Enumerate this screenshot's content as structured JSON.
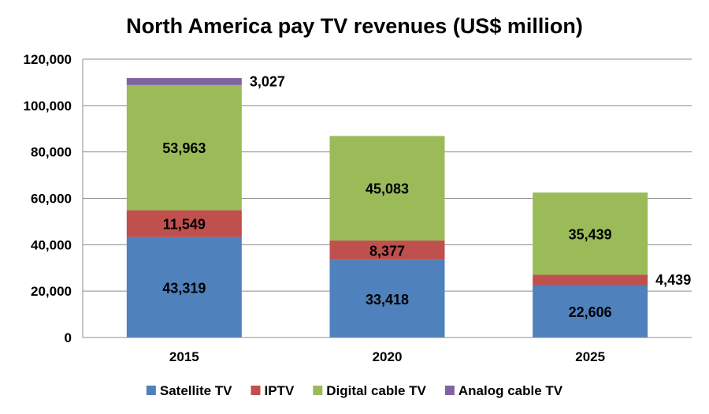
{
  "chart_data": {
    "type": "bar",
    "stacked": true,
    "title": "North America pay TV revenues (US$ million)",
    "xlabel": "",
    "ylabel": "",
    "categories": [
      "2015",
      "2020",
      "2025"
    ],
    "ylim": [
      0,
      120000
    ],
    "yticks": [
      0,
      20000,
      40000,
      60000,
      80000,
      100000,
      120000
    ],
    "ytick_labels": [
      "0",
      "20,000",
      "40,000",
      "60,000",
      "80,000",
      "100,000",
      "120,000"
    ],
    "grid": true,
    "legend_position": "bottom",
    "series": [
      {
        "name": "Satellite TV",
        "color": "#4f81bd",
        "values": [
          43319,
          33418,
          22606
        ],
        "labels": [
          "43,319",
          "33,418",
          "22,606"
        ]
      },
      {
        "name": "IPTV",
        "color": "#c0504d",
        "values": [
          11549,
          8377,
          4439
        ],
        "labels": [
          "11,549",
          "8,377",
          "4,439"
        ]
      },
      {
        "name": "Digital cable TV",
        "color": "#9bbb59",
        "values": [
          53963,
          45083,
          35439
        ],
        "labels": [
          "53,963",
          "45,083",
          "35,439"
        ]
      },
      {
        "name": "Analog cable TV",
        "color": "#8064a2",
        "values": [
          3027,
          0,
          0
        ],
        "labels": [
          "3,027",
          "",
          ""
        ]
      }
    ]
  }
}
